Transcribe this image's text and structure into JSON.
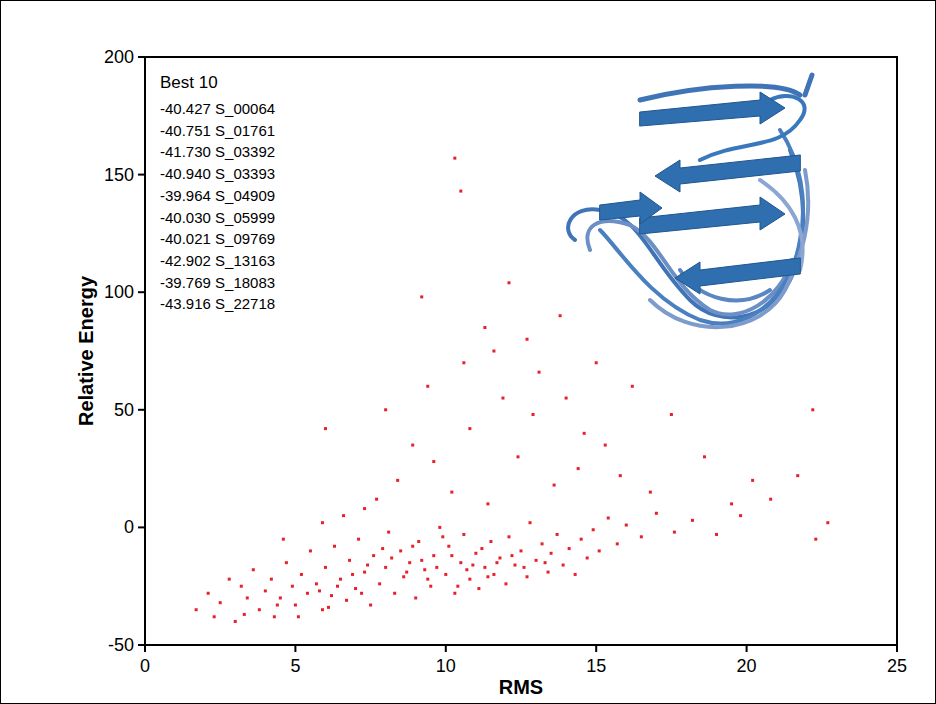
{
  "chart_data": {
    "type": "scatter",
    "x_label": "RMS",
    "y_label": "Relative Energy",
    "annotation_title": "Best 10",
    "annotations": [
      "-40.427 S_00064",
      "-40.751 S_01761",
      "-41.730 S_03392",
      "-40.940 S_03393",
      "-39.964 S_04909",
      "-40.030 S_05999",
      "-40.021 S_09769",
      "-42.902 S_13163",
      "-39.769 S_18083",
      "-43.916 S_22718"
    ],
    "color": "#e8202a",
    "marker": "square",
    "xlim": [
      0,
      25
    ],
    "ylim": [
      -50,
      200
    ],
    "xticks": [
      0,
      5,
      10,
      15,
      20,
      25
    ],
    "yticks": [
      -50,
      0,
      50,
      100,
      150,
      200
    ],
    "grid": false,
    "x": [
      1.7,
      2.1,
      2.5,
      2.8,
      3.0,
      3.2,
      3.4,
      3.6,
      3.8,
      4.0,
      4.2,
      4.3,
      4.5,
      4.7,
      4.9,
      5.0,
      5.2,
      5.4,
      5.5,
      5.7,
      5.9,
      6.0,
      6.2,
      6.3,
      6.5,
      6.7,
      6.8,
      7.0,
      7.1,
      7.3,
      7.5,
      7.6,
      7.8,
      8.0,
      8.1,
      8.3,
      8.5,
      8.6,
      8.8,
      9.0,
      9.1,
      9.3,
      9.5,
      9.6,
      9.8,
      10.0,
      10.1,
      10.3,
      10.5,
      10.6,
      10.8,
      11.0,
      11.1,
      11.3,
      11.5,
      11.6,
      11.8,
      12.0,
      12.1,
      12.3,
      12.5,
      12.7,
      12.8,
      13.0,
      13.2,
      13.4,
      13.5,
      13.7,
      13.9,
      14.1,
      14.3,
      14.5,
      14.7,
      14.9,
      15.1,
      15.4,
      15.7,
      16.0,
      16.5,
      17.0,
      17.6,
      18.2,
      19.0,
      19.8,
      8.2,
      8.7,
      9.2,
      9.7,
      10.2,
      10.7,
      11.2,
      7.4,
      6.9,
      6.4,
      5.8,
      9.4,
      10.9,
      12.2,
      11.7,
      8.9,
      7.9,
      9.9,
      10.4,
      7.2,
      13.3,
      12.6,
      11.4,
      4.4,
      3.3,
      2.3,
      6.1,
      5.1,
      6.6,
      7.7,
      8.4,
      9.6,
      10.2,
      11.4,
      12.4,
      13.6,
      14.4,
      8.9,
      10.8,
      11.9,
      12.9,
      9.4,
      10.6,
      13.1,
      14.6,
      15.8,
      16.8,
      7.3,
      5.9,
      6.0,
      9.2,
      10.3,
      10.5,
      11.3,
      12.1,
      11.6,
      8.0,
      14.0,
      15.3,
      17.5,
      18.6,
      20.2,
      20.8,
      21.7,
      22.2,
      22.3,
      22.7,
      19.5,
      16.2,
      13.8,
      12.7,
      15.0,
      4.6
    ],
    "values": [
      -35,
      -28,
      -32,
      -22,
      -40,
      -25,
      -30,
      -18,
      -35,
      -27,
      -22,
      -38,
      -30,
      -15,
      -25,
      -33,
      -20,
      -28,
      -10,
      -24,
      -35,
      -17,
      -29,
      -8,
      -22,
      -31,
      -14,
      -26,
      -5,
      -19,
      -33,
      -12,
      -24,
      -17,
      -2,
      -28,
      -10,
      -21,
      -15,
      -30,
      -6,
      -18,
      -25,
      -12,
      0,
      -20,
      -8,
      -28,
      -15,
      -3,
      -22,
      -11,
      -26,
      -17,
      -6,
      -20,
      -13,
      -24,
      -4,
      -16,
      -10,
      -21,
      2,
      -14,
      -7,
      -19,
      -11,
      -3,
      -16,
      -9,
      -20,
      -5,
      -13,
      -1,
      -10,
      4,
      -7,
      1,
      -4,
      6,
      -2,
      3,
      -3,
      5,
      -13,
      -19,
      -14,
      -17,
      -12,
      -18,
      -9,
      -16,
      -20,
      -25,
      -27,
      -22,
      -16,
      -12,
      -15,
      -8,
      -9,
      -4,
      -25,
      -28,
      -15,
      -17,
      -21,
      -33,
      -37,
      -38,
      -34,
      -38,
      5,
      12,
      20,
      28,
      15,
      10,
      30,
      18,
      25,
      35,
      42,
      55,
      48,
      60,
      70,
      66,
      40,
      22,
      15,
      8,
      2,
      42,
      98,
      157,
      143,
      85,
      104,
      75,
      50,
      55,
      35,
      48,
      30,
      20,
      12,
      22,
      50,
      -5,
      2,
      10,
      60,
      90,
      80,
      70,
      -5
    ]
  }
}
